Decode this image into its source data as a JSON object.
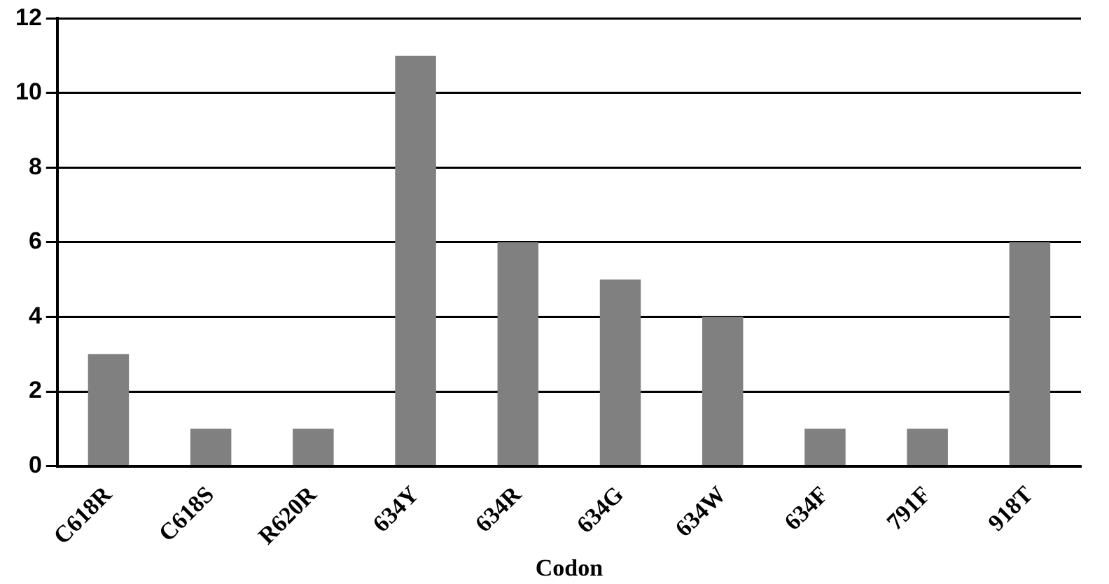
{
  "chart_data": {
    "type": "bar",
    "xlabel": "Codon",
    "categories": [
      "C618R",
      "C618S",
      "R620R",
      "634Y",
      "634R",
      "634G",
      "634W",
      "634F",
      "791F",
      "918T"
    ],
    "values": [
      3,
      1,
      1,
      11,
      6,
      5,
      4,
      1,
      1,
      6
    ],
    "color": "#808080",
    "ylim": [
      0,
      12
    ],
    "yticks": [
      0,
      2,
      4,
      6,
      8,
      10,
      12
    ],
    "grid": "y",
    "legend": false
  }
}
